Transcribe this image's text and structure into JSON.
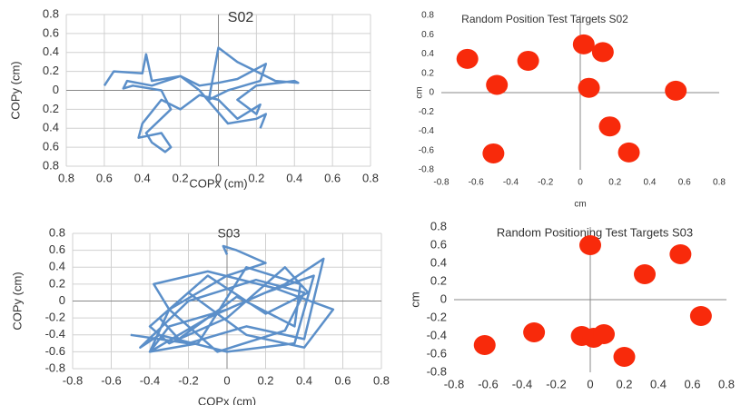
{
  "chart_data": [
    {
      "type": "line",
      "title": "S02",
      "x_label": "COPx (cm)",
      "y_label": "COPy (cm)",
      "color": "#5b8fc9",
      "grid": "both",
      "x": [
        -0.6,
        -0.55,
        -0.4,
        -0.38,
        -0.35,
        -0.2,
        -0.1,
        0.0,
        0.1,
        0.25,
        0.22,
        0.05,
        -0.05,
        0.0,
        0.1,
        0.3,
        0.42,
        0.4,
        0.2,
        0.1,
        0.2,
        0.22,
        0.1,
        0.0,
        -0.1,
        -0.2,
        -0.3,
        -0.4,
        -0.42,
        -0.3,
        -0.25,
        -0.28,
        -0.35,
        -0.38,
        -0.25,
        -0.3,
        -0.45,
        -0.5,
        -0.48,
        -0.35,
        -0.2,
        -0.1,
        0.05,
        0.2,
        0.25,
        0.22
      ],
      "values": [
        0.05,
        0.2,
        0.18,
        0.38,
        0.1,
        0.15,
        0.05,
        0.08,
        0.12,
        0.28,
        0.1,
        0.0,
        -0.1,
        0.45,
        0.3,
        0.1,
        0.08,
        0.1,
        0.05,
        -0.1,
        -0.25,
        -0.15,
        -0.3,
        -0.1,
        -0.05,
        -0.2,
        -0.1,
        -0.35,
        -0.5,
        -0.45,
        -0.6,
        -0.65,
        -0.55,
        -0.45,
        -0.2,
        0.0,
        0.05,
        0.02,
        0.1,
        0.05,
        0.15,
        0.0,
        -0.35,
        -0.3,
        -0.25,
        -0.4
      ],
      "xlim": [
        -0.8,
        0.8
      ],
      "ylim": [
        -0.8,
        0.8
      ],
      "xticks": [
        {
          "value": -0.8,
          "label": "0.8"
        },
        {
          "value": -0.6,
          "label": "0.6"
        },
        {
          "value": -0.4,
          "label": "0.4"
        },
        {
          "value": -0.2,
          "label": "0.2"
        },
        0,
        0.2,
        0.4,
        0.6,
        0.8
      ],
      "yticks": [
        {
          "value": -0.8,
          "label": "0.8"
        },
        {
          "value": -0.6,
          "label": "0.6"
        },
        {
          "value": -0.4,
          "label": "0.4"
        },
        {
          "value": -0.2,
          "label": "0.2"
        },
        0,
        0.2,
        0.4,
        0.6,
        0.8
      ]
    },
    {
      "type": "scatter",
      "title": "Random Position Test Targets S02",
      "x_label": "cm",
      "y_label": "cm",
      "color": "#f82a0b",
      "grid": "none",
      "x": [
        -0.65,
        -0.48,
        -0.3,
        0.02,
        0.13,
        0.05,
        0.55,
        0.17,
        0.28,
        -0.5
      ],
      "values": [
        0.35,
        0.08,
        0.33,
        0.5,
        0.42,
        0.05,
        0.02,
        -0.35,
        -0.62,
        -0.63
      ],
      "xlim": [
        -0.8,
        0.8
      ],
      "ylim": [
        -0.8,
        0.8
      ],
      "xticks": [
        -0.8,
        -0.6,
        -0.4,
        -0.2,
        0,
        0.2,
        0.4,
        0.6,
        0.8
      ],
      "yticks": [
        -0.8,
        -0.6,
        -0.4,
        -0.2,
        0,
        0.2,
        0.4,
        0.6,
        0.8
      ]
    },
    {
      "type": "line",
      "title": "S03",
      "x_label": "COPx (cm)",
      "y_label": "COPy (cm)",
      "color": "#5b8fc9",
      "grid": "both",
      "x": [
        -0.5,
        -0.2,
        0.1,
        0.4,
        0.5,
        0.3,
        0.0,
        -0.3,
        -0.4,
        -0.1,
        0.2,
        0.45,
        0.35,
        0.0,
        -0.35,
        -0.45,
        -0.2,
        0.15,
        0.4,
        0.3,
        -0.05,
        -0.3,
        -0.38,
        -0.1,
        0.25,
        0.55,
        0.4,
        0.1,
        -0.2,
        -0.4,
        -0.3,
        0.0,
        0.3,
        0.42,
        0.2,
        -0.1,
        -0.35,
        -0.25,
        0.05,
        0.35,
        0.38,
        0.1,
        -0.15,
        -0.4,
        -0.3,
        0.0,
        0.2,
        0.05,
        -0.02,
        0.0
      ],
      "values": [
        -0.4,
        -0.5,
        -0.3,
        -0.45,
        0.5,
        0.2,
        -0.1,
        -0.3,
        -0.6,
        -0.2,
        0.1,
        0.3,
        -0.5,
        -0.6,
        -0.4,
        -0.55,
        0.0,
        0.25,
        0.1,
        -0.35,
        -0.6,
        -0.1,
        0.2,
        0.35,
        0.15,
        -0.1,
        -0.55,
        -0.4,
        0.1,
        -0.3,
        -0.5,
        -0.2,
        0.4,
        0.1,
        -0.15,
        0.3,
        -0.2,
        -0.45,
        0.05,
        -0.3,
        0.2,
        0.4,
        -0.5,
        -0.6,
        -0.1,
        0.3,
        0.45,
        0.6,
        0.65,
        0.55
      ],
      "xlim": [
        -0.8,
        0.8
      ],
      "ylim": [
        -0.8,
        0.8
      ],
      "xticks": [
        -0.8,
        -0.6,
        -0.4,
        -0.2,
        0,
        0.2,
        0.4,
        0.6,
        0.8
      ],
      "yticks": [
        -0.8,
        -0.6,
        -0.4,
        -0.2,
        0,
        0.2,
        0.4,
        0.6,
        0.8
      ]
    },
    {
      "type": "scatter",
      "title": "Random Positioning Test Targets S03",
      "y_label": "cm",
      "color": "#f82a0b",
      "grid": "none",
      "x": [
        0.0,
        0.32,
        0.53,
        0.65,
        -0.62,
        -0.33,
        -0.05,
        0.02,
        0.08,
        0.2
      ],
      "values": [
        0.6,
        0.28,
        0.5,
        -0.18,
        -0.5,
        -0.36,
        -0.4,
        -0.42,
        -0.38,
        -0.63
      ],
      "xlim": [
        -0.8,
        0.8
      ],
      "ylim": [
        -0.8,
        0.8
      ],
      "xticks": [
        -0.8,
        -0.6,
        -0.4,
        -0.2,
        0,
        0.2,
        0.4,
        0.6,
        0.8
      ],
      "yticks": [
        -0.8,
        -0.6,
        -0.4,
        -0.2,
        0,
        0.2,
        0.4,
        0.6,
        0.8
      ]
    }
  ]
}
